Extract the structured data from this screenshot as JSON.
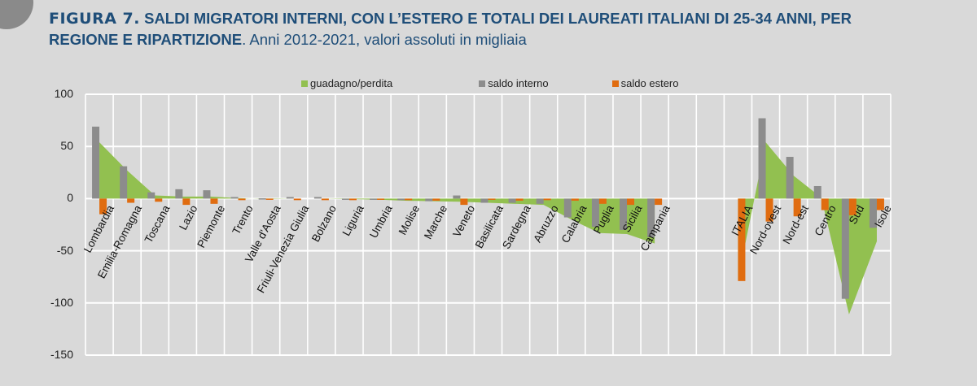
{
  "title": {
    "figure_label": "FIGURA 7.",
    "heading_line1": " SALDI MIGRATORI INTERNI, CON L’ESTERO E TOTALI DEI LAUREATI ITALIANI DI 25-34 ANNI, PER",
    "heading_line2": "REGIONE E RIPARTIZIONE",
    "subtitle": ". Anni 2012-2021, valori assoluti in migliaia"
  },
  "colors": {
    "background": "#d9d9d9",
    "grid": "#ffffff",
    "title": "#1f4e79",
    "guadagno": "#92c050",
    "interno": "#8c8c8c",
    "estero": "#e06c10"
  },
  "legend": [
    {
      "label": "guadagno/perdita",
      "color": "#92c050"
    },
    {
      "label": "saldo interno",
      "color": "#8c8c8c"
    },
    {
      "label": "saldo estero",
      "color": "#e06c10"
    }
  ],
  "chart_data": {
    "type": "bar",
    "title": "SALDI MIGRATORI INTERNI, CON L’ESTERO E TOTALI DEI LAUREATI ITALIANI DI 25-34 ANNI, PER REGIONE E RIPARTIZIONE. Anni 2012-2021, valori assoluti in migliaia",
    "xlabel": "",
    "ylabel": "",
    "ylim": [
      -150,
      100
    ],
    "yticks": [
      100,
      50,
      0,
      -50,
      -100,
      -150
    ],
    "grid": true,
    "legend_position": "top",
    "categories": [
      "Lombardia",
      "Emilia-Romagna",
      "Toscana",
      "Lazio",
      "Piemonte",
      "Trento",
      "Valle d'Aosta",
      "Friuli-Venezia Giulia",
      "Bolzano",
      "Liguria",
      "Umbria",
      "Molise",
      "Marche",
      "Veneto",
      "Basilicata",
      "Sardegna",
      "Abruzzo",
      "Calabria",
      "Puglia",
      "Sicilia",
      "Campania",
      "",
      "",
      "ITALIA",
      "Nord-ovest",
      "Nord-est",
      "Centro",
      "Sud",
      "Isole"
    ],
    "series": [
      {
        "name": "guadagno/perdita",
        "type": "area",
        "values": [
          54,
          27,
          3,
          2,
          2,
          0.5,
          -0.5,
          0,
          0,
          -0.5,
          -1,
          -2,
          -2.5,
          -3,
          -4,
          -5,
          -6,
          -20,
          -33,
          -34,
          -43,
          null,
          null,
          -78,
          54,
          22,
          1,
          -111,
          -41
        ]
      },
      {
        "name": "saldo interno",
        "values": [
          69,
          31,
          6,
          9,
          8,
          1.5,
          0.3,
          1.5,
          1.5,
          -0.5,
          -1,
          -1.5,
          -2.5,
          3,
          -4,
          -4,
          -5,
          -18,
          -27,
          -30,
          -37,
          null,
          null,
          0,
          77,
          40,
          12,
          -96,
          -28
        ]
      },
      {
        "name": "saldo estero",
        "values": [
          -15,
          -4,
          -3,
          -6,
          -5,
          -1.5,
          -1,
          -1.5,
          -1.5,
          -1.5,
          -1,
          -1.5,
          -2,
          -6,
          -1,
          -2,
          -1.5,
          -2,
          -5,
          -6,
          -6,
          null,
          null,
          -79,
          -22,
          -17,
          -11,
          -16,
          -11
        ]
      }
    ]
  }
}
